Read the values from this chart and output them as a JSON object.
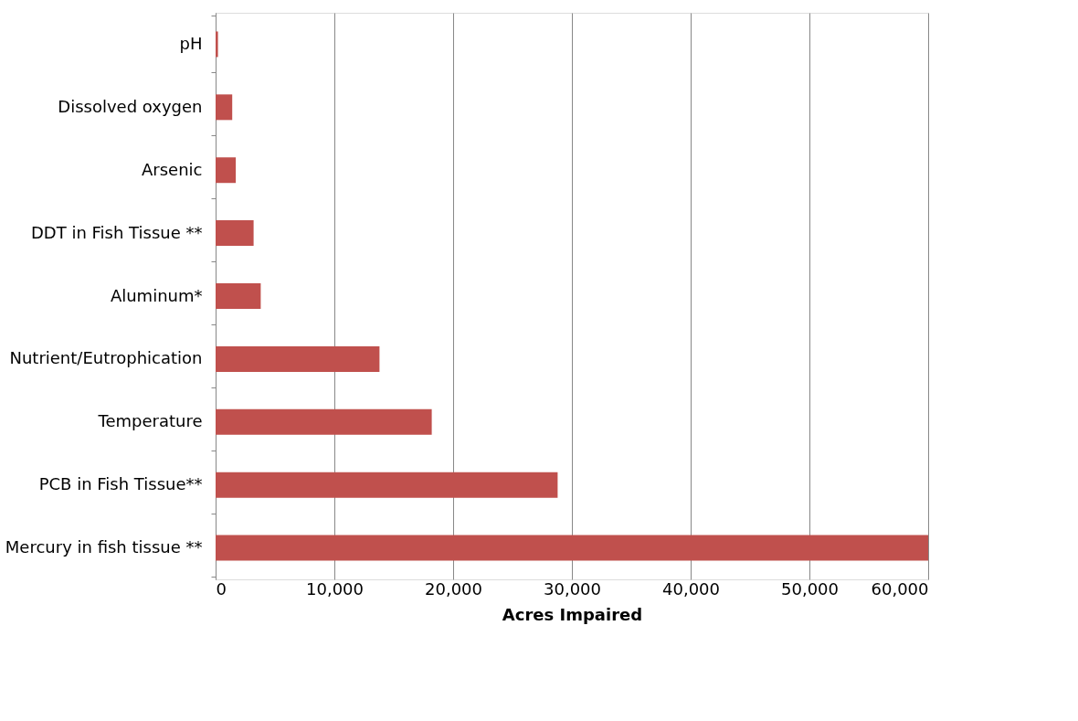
{
  "chart_data": {
    "type": "bar",
    "orientation": "horizontal",
    "xlabel": "Acres Impaired",
    "categories": [
      "pH",
      "Dissolved oxygen",
      "Arsenic",
      "DDT in Fish Tissue **",
      "Aluminum*",
      "Nutrient/Eutrophication",
      "Temperature",
      "PCB in Fish Tissue**",
      "Mercury in fish tissue **"
    ],
    "values": [
      200,
      1400,
      1700,
      3200,
      3800,
      13800,
      18200,
      28800,
      60000
    ],
    "color": "#c0504d",
    "xlim": [
      0,
      60000
    ],
    "xticks": [
      0,
      {
        "value": 10000,
        "label": "10,000"
      },
      {
        "value": 20000,
        "label": "20,000"
      },
      {
        "value": 30000,
        "label": "30,000"
      },
      {
        "value": 40000,
        "label": "40,000"
      },
      {
        "value": 50000,
        "label": "50,000"
      },
      {
        "value": 60000,
        "label": "60,000"
      }
    ],
    "grid": "x"
  }
}
